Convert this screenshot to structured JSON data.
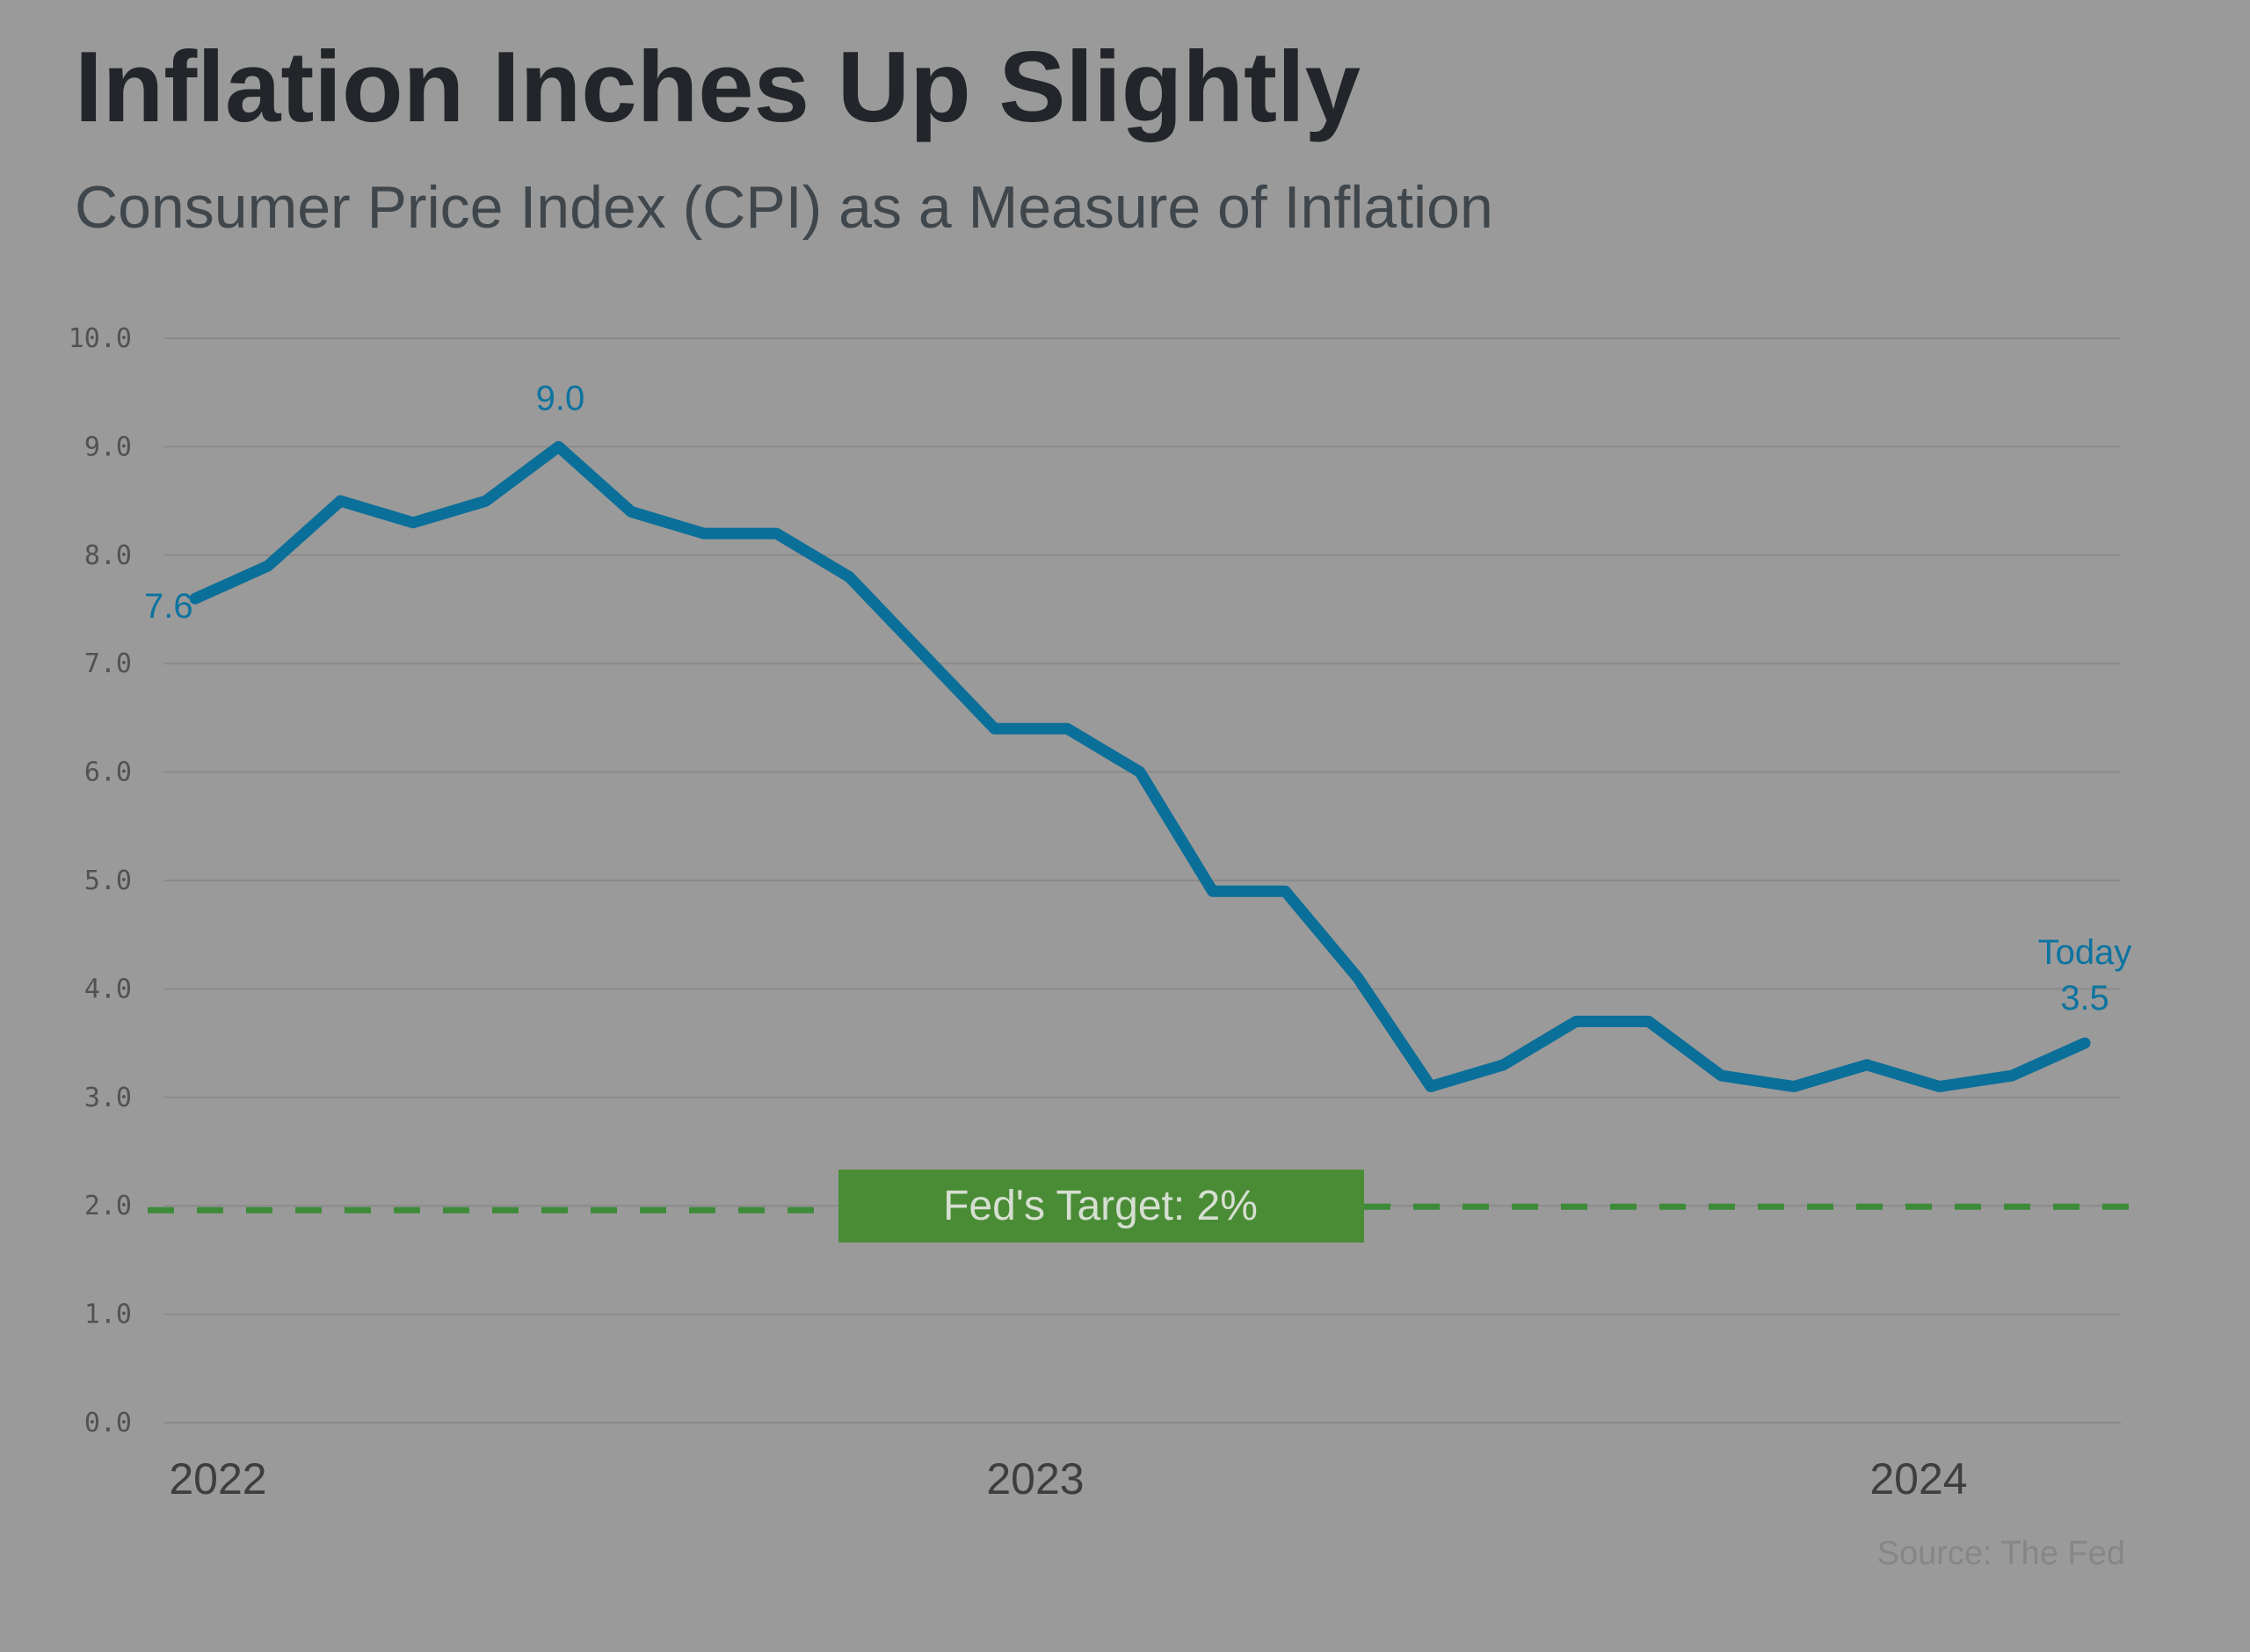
{
  "chart_data": {
    "type": "line",
    "title": "Inflation Inches Up Slightly",
    "subtitle": "Consumer Price Index (CPI) as a Measure of Inflation",
    "xlabel": "",
    "ylabel": "",
    "ylim": [
      0,
      10
    ],
    "y_ticks": [
      "0.0",
      "1.0",
      "2.0",
      "3.0",
      "4.0",
      "5.0",
      "6.0",
      "7.0",
      "8.0",
      "9.0",
      "10.0"
    ],
    "x_ticks": [
      {
        "label": "2022",
        "index": 0
      },
      {
        "label": "2023",
        "index": 11
      },
      {
        "label": "2024",
        "index": 23
      }
    ],
    "grid": true,
    "series": [
      {
        "name": "CPI",
        "color": "#0a6f99",
        "values": [
          7.6,
          7.9,
          8.5,
          8.3,
          8.5,
          9.0,
          8.4,
          8.2,
          8.2,
          7.8,
          7.1,
          6.4,
          6.4,
          6.0,
          4.9,
          4.9,
          4.1,
          3.1,
          3.3,
          3.7,
          3.7,
          3.2,
          3.1,
          3.3,
          3.1,
          3.2,
          3.5
        ]
      }
    ],
    "annotations": [
      {
        "label": "7.6",
        "index": 0,
        "value": 7.6
      },
      {
        "label": "9.0",
        "index": 5,
        "value": 9.0
      },
      {
        "label": "Today",
        "index": 26,
        "value": 3.5
      },
      {
        "label": "3.5",
        "index": 26,
        "value": 3.5
      }
    ],
    "target": {
      "value": 2.0,
      "label": "Fed's Target: 2%",
      "color": "#4a8c36"
    },
    "source": "Source: The Fed"
  }
}
